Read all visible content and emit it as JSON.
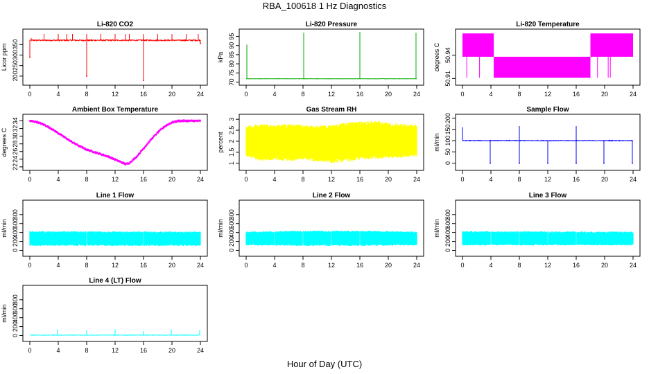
{
  "title": "RBA_100618  1 Hz Diagnostics",
  "xlabel": "Hour of Day (UTC)",
  "chart_data": [
    {
      "type": "line",
      "title": "Li-820 CO2",
      "ylabel": "Licor ppm",
      "color": "#ff0000",
      "xlim": [
        0,
        24
      ],
      "ylim": [
        170,
        410
      ],
      "xticks": [
        "0",
        "4",
        "8",
        "12",
        "16",
        "20",
        "24"
      ],
      "yticks": [
        200,
        250,
        300,
        350
      ],
      "series": [
        {
          "baseline": 370,
          "noise": 6,
          "up_spikes": [
            [
              0.2,
              380
            ],
            [
              2.0,
              400
            ],
            [
              4.0,
              400
            ],
            [
              5.2,
              400
            ],
            [
              6.0,
              400
            ],
            [
              8.0,
              400
            ],
            [
              10.0,
              400
            ],
            [
              12.0,
              400
            ],
            [
              13.5,
              400
            ],
            [
              14.0,
              400
            ],
            [
              16.0,
              400
            ],
            [
              18.0,
              400
            ],
            [
              20.0,
              400
            ],
            [
              22.0,
              400
            ],
            [
              23.7,
              400
            ]
          ],
          "down_spikes": [
            [
              0.0,
              290
            ],
            [
              8.0,
              200
            ],
            [
              16.0,
              180
            ],
            [
              24.0,
              355
            ]
          ]
        }
      ]
    },
    {
      "type": "line",
      "title": "Li-820 Pressure",
      "ylabel": "kPa",
      "color": "#00aa00",
      "xlim": [
        0,
        24
      ],
      "ylim": [
        69.8,
        97.5
      ],
      "xticks": [
        "0",
        "4",
        "8",
        "12",
        "16",
        "20",
        "24"
      ],
      "yticks": [
        70,
        75,
        80,
        85,
        90,
        95
      ],
      "series": [
        {
          "baseline": 71.8,
          "noise": 0.15,
          "up_spikes": [
            [
              0.1,
              90.5
            ],
            [
              8.1,
              97.0
            ],
            [
              16.0,
              97.5
            ],
            [
              23.9,
              97.0
            ]
          ],
          "down_spikes": []
        }
      ]
    },
    {
      "type": "step",
      "title": "Li-820 Temperature",
      "ylabel": "degrees C",
      "color": "#ff00ff",
      "xlim": [
        0,
        24
      ],
      "ylim": [
        50.905,
        50.97
      ],
      "xticks": [
        "0",
        "4",
        "8",
        "12",
        "16",
        "20",
        "24"
      ],
      "yticks": [
        50.91,
        50.94
      ],
      "bands": [
        {
          "x0": 0.0,
          "x1": 4.4,
          "y0": 50.938,
          "y1": 50.968
        },
        {
          "x0": 4.4,
          "x1": 18.0,
          "y0": 50.911,
          "y1": 50.938
        },
        {
          "x0": 18.0,
          "x1": 24.0,
          "y0": 50.938,
          "y1": 50.968
        }
      ],
      "drops": [
        [
          0.6,
          50.911
        ],
        [
          2.4,
          50.911
        ],
        [
          19.0,
          50.911
        ],
        [
          20.5,
          50.911
        ],
        [
          20.8,
          50.911
        ]
      ]
    },
    {
      "type": "line",
      "title": "Ambient Box Temperature",
      "ylabel": "degrees C",
      "color": "#ff00ff",
      "xlim": [
        0,
        24
      ],
      "ylim": [
        21.8,
        35
      ],
      "xticks": [
        "0",
        "4",
        "8",
        "12",
        "16",
        "20",
        "24"
      ],
      "yticks": [
        22,
        24,
        26,
        28,
        30,
        32,
        34
      ],
      "series": [
        {
          "x": [
            0,
            1,
            2,
            3,
            4,
            5,
            6,
            7,
            8,
            9,
            10,
            11,
            12,
            13,
            13.5,
            14,
            15,
            16,
            17,
            18,
            19,
            20,
            21,
            22,
            23,
            24
          ],
          "values": [
            34.0,
            33.7,
            33.0,
            32.0,
            30.8,
            29.6,
            28.4,
            27.4,
            26.5,
            25.9,
            25.3,
            24.7,
            23.9,
            23.1,
            22.7,
            23.0,
            24.6,
            26.8,
            29.0,
            31.0,
            32.6,
            33.6,
            34.0,
            34.0,
            34.0,
            34.0
          ],
          "band": 0.5
        }
      ]
    },
    {
      "type": "band",
      "title": "Gas Stream RH",
      "ylabel": "percent",
      "color": "#ffff00",
      "xlim": [
        0,
        24
      ],
      "ylim": [
        0.8,
        3.1
      ],
      "xticks": [
        "0",
        "4",
        "8",
        "12",
        "16",
        "20",
        "24"
      ],
      "yticks": [
        1.0,
        1.5,
        2.0,
        2.5,
        3.0
      ],
      "series": [
        {
          "x": [
            0,
            2,
            4,
            6,
            8,
            10,
            12,
            14,
            16,
            18,
            20,
            22,
            24
          ],
          "lower": [
            1.3,
            1.1,
            1.15,
            1.1,
            1.15,
            1.05,
            1.0,
            1.05,
            1.15,
            1.2,
            1.2,
            1.25,
            1.3
          ],
          "upper": [
            2.7,
            2.8,
            2.75,
            2.8,
            2.75,
            2.7,
            2.75,
            2.85,
            2.9,
            2.95,
            2.85,
            2.8,
            2.75
          ]
        }
      ]
    },
    {
      "type": "line",
      "title": "Sample Flow",
      "ylabel": "ml/min",
      "color": "#0000ff",
      "xlim": [
        0,
        24
      ],
      "ylim": [
        -20,
        205
      ],
      "xticks": [
        "0",
        "4",
        "8",
        "12",
        "16",
        "20",
        "24"
      ],
      "yticks": [
        0,
        50,
        100,
        150,
        200
      ],
      "series": [
        {
          "baseline": 100,
          "noise": 3,
          "up_spikes": [
            [
              0.0,
              160
            ],
            [
              8.0,
              165
            ],
            [
              16.0,
              165
            ]
          ],
          "down_spikes": [
            [
              3.9,
              0
            ],
            [
              8.0,
              0
            ],
            [
              12.0,
              0
            ],
            [
              16.0,
              0
            ],
            [
              19.9,
              0
            ],
            [
              23.9,
              0
            ]
          ]
        }
      ]
    },
    {
      "type": "band",
      "title": "Line 1 Flow",
      "ylabel": "ml/min",
      "color": "#00ffff",
      "xlim": [
        0,
        24
      ],
      "ylim": [
        -70,
        1060
      ],
      "xticks": [
        "0",
        "4",
        "8",
        "12",
        "16",
        "20",
        "24"
      ],
      "yticks": [
        0,
        200,
        400,
        600,
        800
      ],
      "series": [
        {
          "x": [
            0,
            24
          ],
          "lower": [
            100,
            100
          ],
          "upper": [
            430,
            420
          ]
        }
      ],
      "gaps": [
        3.9,
        8.0,
        16.0,
        19.9
      ]
    },
    {
      "type": "band",
      "title": "Line 2 Flow",
      "ylabel": "ml/min",
      "color": "#00ffff",
      "xlim": [
        0,
        24
      ],
      "ylim": [
        -70,
        1060
      ],
      "xticks": [
        "0",
        "4",
        "8",
        "12",
        "16",
        "20",
        "24"
      ],
      "yticks": [
        0,
        200,
        400,
        600,
        800
      ],
      "series": [
        {
          "x": [
            0,
            8,
            16,
            24
          ],
          "lower": [
            110,
            100,
            100,
            110
          ],
          "upper": [
            420,
            440,
            440,
            420
          ]
        }
      ],
      "gaps": [
        4.0,
        8.0,
        12.0,
        16.0,
        19.9
      ]
    },
    {
      "type": "band",
      "title": "Line 3 Flow",
      "ylabel": "ml/min",
      "color": "#00ffff",
      "xlim": [
        0,
        24
      ],
      "ylim": [
        -70,
        1060
      ],
      "xticks": [
        "0",
        "4",
        "8",
        "12",
        "16",
        "20",
        "24"
      ],
      "yticks": [
        0,
        200,
        400,
        600,
        800
      ],
      "series": [
        {
          "x": [
            0,
            24
          ],
          "lower": [
            110,
            110
          ],
          "upper": [
            430,
            420
          ]
        }
      ],
      "gaps": [
        4.0,
        8.0,
        12.0,
        16.0,
        19.9
      ]
    },
    {
      "type": "line",
      "title": "Line 4 (LT) Flow",
      "ylabel": "ml/min",
      "color": "#00ffff",
      "xlim": [
        0,
        24
      ],
      "ylim": [
        -70,
        1060
      ],
      "xticks": [
        "0",
        "4",
        "8",
        "12",
        "16",
        "20",
        "24"
      ],
      "yticks": [
        0,
        200,
        400,
        600,
        800
      ],
      "series": [
        {
          "baseline": 10,
          "noise": 12,
          "up_spikes": [
            [
              3.9,
              140
            ],
            [
              8.0,
              110
            ],
            [
              12.0,
              140
            ],
            [
              16.0,
              100
            ],
            [
              19.9,
              140
            ],
            [
              23.9,
              120
            ]
          ],
          "down_spikes": []
        }
      ]
    }
  ]
}
